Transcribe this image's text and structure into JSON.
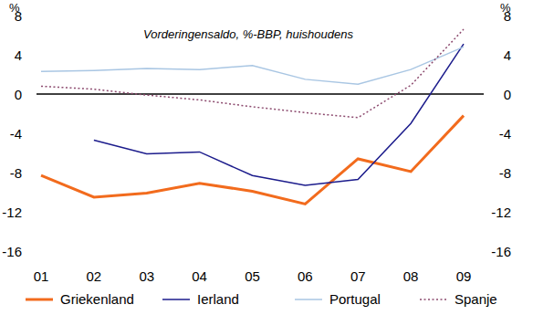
{
  "chart_data": {
    "type": "line",
    "title": "Vorderingensaldo, %-BBP, huishoudens",
    "y_label": "%",
    "y2_label": "%",
    "categories": [
      "01",
      "02",
      "03",
      "04",
      "05",
      "06",
      "07",
      "08",
      "09"
    ],
    "series": [
      {
        "name": "Griekenland",
        "color": "#f26b1d",
        "line_style": "solid",
        "values": [
          -8.3,
          -10.5,
          -10.1,
          -9.1,
          -9.9,
          -11.2,
          -6.6,
          -7.9,
          -2.2
        ]
      },
      {
        "name": "Ierland",
        "color": "#1c1c8c",
        "line_style": "solid",
        "values": [
          null,
          -4.7,
          -6.1,
          -5.9,
          -8.3,
          -9.3,
          -8.7,
          -3.0,
          5.1
        ]
      },
      {
        "name": "Portugal",
        "color": "#a9c6e3",
        "line_style": "solid",
        "values": [
          2.3,
          2.4,
          2.6,
          2.5,
          2.9,
          1.5,
          1.0,
          2.5,
          4.8
        ]
      },
      {
        "name": "Spanje",
        "color": "#8c4a6e",
        "line_style": "dotted",
        "values": [
          0.8,
          0.5,
          -0.1,
          -0.6,
          -1.3,
          -1.9,
          -2.4,
          0.9,
          6.6
        ]
      }
    ],
    "ylim": [
      -16,
      8
    ],
    "yticks": [
      -16,
      -12,
      -8,
      -4,
      0,
      4,
      8
    ],
    "y2lim": [
      -16,
      8
    ],
    "y2ticks": [
      -16,
      -12,
      -8,
      -4,
      0,
      4,
      8
    ],
    "grid": false,
    "legend": "bottom"
  }
}
